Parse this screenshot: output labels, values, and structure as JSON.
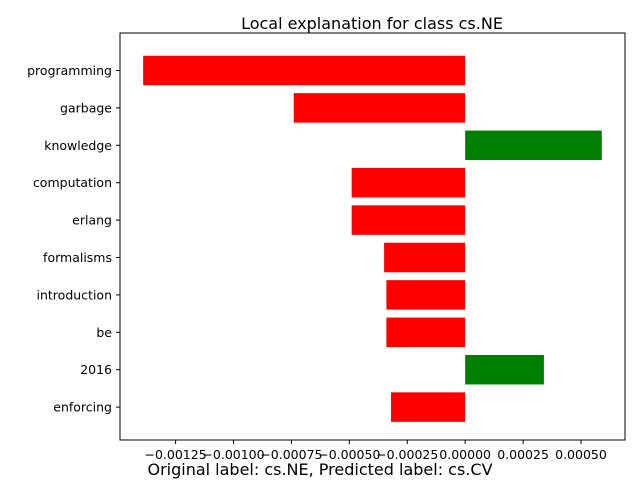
{
  "chart_data": {
    "type": "bar",
    "orientation": "horizontal",
    "title": "Local explanation for class cs.NE",
    "xlabel": "",
    "ylabel": "",
    "caption": "Original label: cs.NE, Predicted label: cs.CV",
    "categories": [
      "programming",
      "garbage",
      "knowledge",
      "computation",
      "erlang",
      "formalisms",
      "introduction",
      "be",
      "2016",
      "enforcing"
    ],
    "values": [
      -0.00139,
      -0.00074,
      0.00059,
      -0.00049,
      -0.00049,
      -0.00035,
      -0.00034,
      -0.00034,
      0.00034,
      -0.00032
    ],
    "xlim": [
      -0.00149,
      0.00069
    ],
    "x_ticks": [
      -0.00125,
      -0.001,
      -0.00075,
      -0.0005,
      -0.00025,
      0.0,
      0.00025,
      0.0005
    ],
    "x_tick_labels": [
      "−0.00125",
      "−0.00100",
      "−0.00075",
      "−0.00050",
      "−0.00025",
      "0.00000",
      "0.00025",
      "0.00050"
    ],
    "colors": {
      "positive": "#008000",
      "negative": "#ff0000"
    },
    "grid": false,
    "legend": "none"
  }
}
